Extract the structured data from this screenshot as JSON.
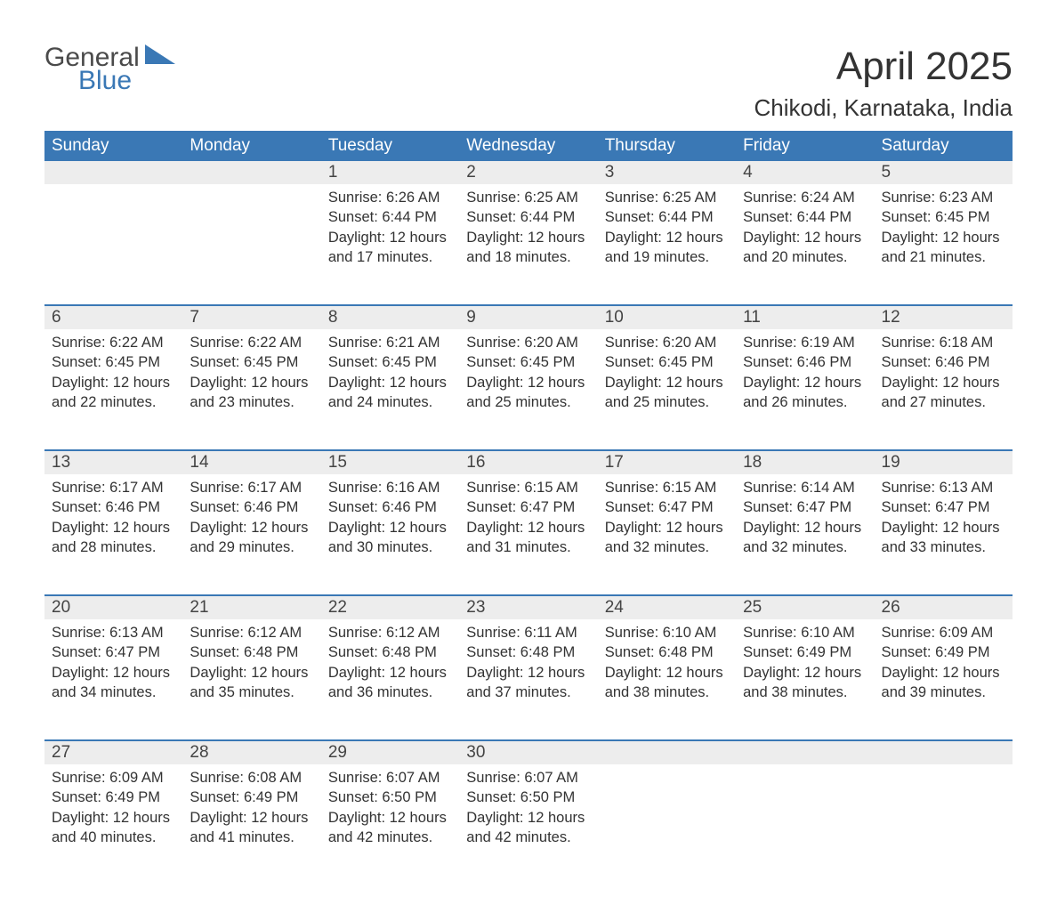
{
  "logo": {
    "word1": "General",
    "word2": "Blue"
  },
  "title": "April 2025",
  "location": "Chikodi, Karnataka, India",
  "colors": {
    "header_bg": "#3a78b5",
    "header_text": "#ffffff",
    "daynum_bg": "#ededed",
    "row_border": "#3a78b5",
    "body_text": "#333333",
    "logo_gray": "#4a4a4a",
    "logo_blue": "#3a78b5",
    "page_bg": "#ffffff"
  },
  "layout": {
    "columns": 7,
    "col_width_pct": 14.28,
    "title_fontsize": 44,
    "location_fontsize": 26,
    "header_fontsize": 19,
    "daynum_fontsize": 19,
    "content_fontsize": 16.5
  },
  "weekdays": [
    "Sunday",
    "Monday",
    "Tuesday",
    "Wednesday",
    "Thursday",
    "Friday",
    "Saturday"
  ],
  "weeks": [
    [
      null,
      null,
      {
        "n": "1",
        "sunrise": "Sunrise: 6:26 AM",
        "sunset": "Sunset: 6:44 PM",
        "day1": "Daylight: 12 hours",
        "day2": "and 17 minutes."
      },
      {
        "n": "2",
        "sunrise": "Sunrise: 6:25 AM",
        "sunset": "Sunset: 6:44 PM",
        "day1": "Daylight: 12 hours",
        "day2": "and 18 minutes."
      },
      {
        "n": "3",
        "sunrise": "Sunrise: 6:25 AM",
        "sunset": "Sunset: 6:44 PM",
        "day1": "Daylight: 12 hours",
        "day2": "and 19 minutes."
      },
      {
        "n": "4",
        "sunrise": "Sunrise: 6:24 AM",
        "sunset": "Sunset: 6:44 PM",
        "day1": "Daylight: 12 hours",
        "day2": "and 20 minutes."
      },
      {
        "n": "5",
        "sunrise": "Sunrise: 6:23 AM",
        "sunset": "Sunset: 6:45 PM",
        "day1": "Daylight: 12 hours",
        "day2": "and 21 minutes."
      }
    ],
    [
      {
        "n": "6",
        "sunrise": "Sunrise: 6:22 AM",
        "sunset": "Sunset: 6:45 PM",
        "day1": "Daylight: 12 hours",
        "day2": "and 22 minutes."
      },
      {
        "n": "7",
        "sunrise": "Sunrise: 6:22 AM",
        "sunset": "Sunset: 6:45 PM",
        "day1": "Daylight: 12 hours",
        "day2": "and 23 minutes."
      },
      {
        "n": "8",
        "sunrise": "Sunrise: 6:21 AM",
        "sunset": "Sunset: 6:45 PM",
        "day1": "Daylight: 12 hours",
        "day2": "and 24 minutes."
      },
      {
        "n": "9",
        "sunrise": "Sunrise: 6:20 AM",
        "sunset": "Sunset: 6:45 PM",
        "day1": "Daylight: 12 hours",
        "day2": "and 25 minutes."
      },
      {
        "n": "10",
        "sunrise": "Sunrise: 6:20 AM",
        "sunset": "Sunset: 6:45 PM",
        "day1": "Daylight: 12 hours",
        "day2": "and 25 minutes."
      },
      {
        "n": "11",
        "sunrise": "Sunrise: 6:19 AM",
        "sunset": "Sunset: 6:46 PM",
        "day1": "Daylight: 12 hours",
        "day2": "and 26 minutes."
      },
      {
        "n": "12",
        "sunrise": "Sunrise: 6:18 AM",
        "sunset": "Sunset: 6:46 PM",
        "day1": "Daylight: 12 hours",
        "day2": "and 27 minutes."
      }
    ],
    [
      {
        "n": "13",
        "sunrise": "Sunrise: 6:17 AM",
        "sunset": "Sunset: 6:46 PM",
        "day1": "Daylight: 12 hours",
        "day2": "and 28 minutes."
      },
      {
        "n": "14",
        "sunrise": "Sunrise: 6:17 AM",
        "sunset": "Sunset: 6:46 PM",
        "day1": "Daylight: 12 hours",
        "day2": "and 29 minutes."
      },
      {
        "n": "15",
        "sunrise": "Sunrise: 6:16 AM",
        "sunset": "Sunset: 6:46 PM",
        "day1": "Daylight: 12 hours",
        "day2": "and 30 minutes."
      },
      {
        "n": "16",
        "sunrise": "Sunrise: 6:15 AM",
        "sunset": "Sunset: 6:47 PM",
        "day1": "Daylight: 12 hours",
        "day2": "and 31 minutes."
      },
      {
        "n": "17",
        "sunrise": "Sunrise: 6:15 AM",
        "sunset": "Sunset: 6:47 PM",
        "day1": "Daylight: 12 hours",
        "day2": "and 32 minutes."
      },
      {
        "n": "18",
        "sunrise": "Sunrise: 6:14 AM",
        "sunset": "Sunset: 6:47 PM",
        "day1": "Daylight: 12 hours",
        "day2": "and 32 minutes."
      },
      {
        "n": "19",
        "sunrise": "Sunrise: 6:13 AM",
        "sunset": "Sunset: 6:47 PM",
        "day1": "Daylight: 12 hours",
        "day2": "and 33 minutes."
      }
    ],
    [
      {
        "n": "20",
        "sunrise": "Sunrise: 6:13 AM",
        "sunset": "Sunset: 6:47 PM",
        "day1": "Daylight: 12 hours",
        "day2": "and 34 minutes."
      },
      {
        "n": "21",
        "sunrise": "Sunrise: 6:12 AM",
        "sunset": "Sunset: 6:48 PM",
        "day1": "Daylight: 12 hours",
        "day2": "and 35 minutes."
      },
      {
        "n": "22",
        "sunrise": "Sunrise: 6:12 AM",
        "sunset": "Sunset: 6:48 PM",
        "day1": "Daylight: 12 hours",
        "day2": "and 36 minutes."
      },
      {
        "n": "23",
        "sunrise": "Sunrise: 6:11 AM",
        "sunset": "Sunset: 6:48 PM",
        "day1": "Daylight: 12 hours",
        "day2": "and 37 minutes."
      },
      {
        "n": "24",
        "sunrise": "Sunrise: 6:10 AM",
        "sunset": "Sunset: 6:48 PM",
        "day1": "Daylight: 12 hours",
        "day2": "and 38 minutes."
      },
      {
        "n": "25",
        "sunrise": "Sunrise: 6:10 AM",
        "sunset": "Sunset: 6:49 PM",
        "day1": "Daylight: 12 hours",
        "day2": "and 38 minutes."
      },
      {
        "n": "26",
        "sunrise": "Sunrise: 6:09 AM",
        "sunset": "Sunset: 6:49 PM",
        "day1": "Daylight: 12 hours",
        "day2": "and 39 minutes."
      }
    ],
    [
      {
        "n": "27",
        "sunrise": "Sunrise: 6:09 AM",
        "sunset": "Sunset: 6:49 PM",
        "day1": "Daylight: 12 hours",
        "day2": "and 40 minutes."
      },
      {
        "n": "28",
        "sunrise": "Sunrise: 6:08 AM",
        "sunset": "Sunset: 6:49 PM",
        "day1": "Daylight: 12 hours",
        "day2": "and 41 minutes."
      },
      {
        "n": "29",
        "sunrise": "Sunrise: 6:07 AM",
        "sunset": "Sunset: 6:50 PM",
        "day1": "Daylight: 12 hours",
        "day2": "and 42 minutes."
      },
      {
        "n": "30",
        "sunrise": "Sunrise: 6:07 AM",
        "sunset": "Sunset: 6:50 PM",
        "day1": "Daylight: 12 hours",
        "day2": "and 42 minutes."
      },
      null,
      null,
      null
    ]
  ]
}
